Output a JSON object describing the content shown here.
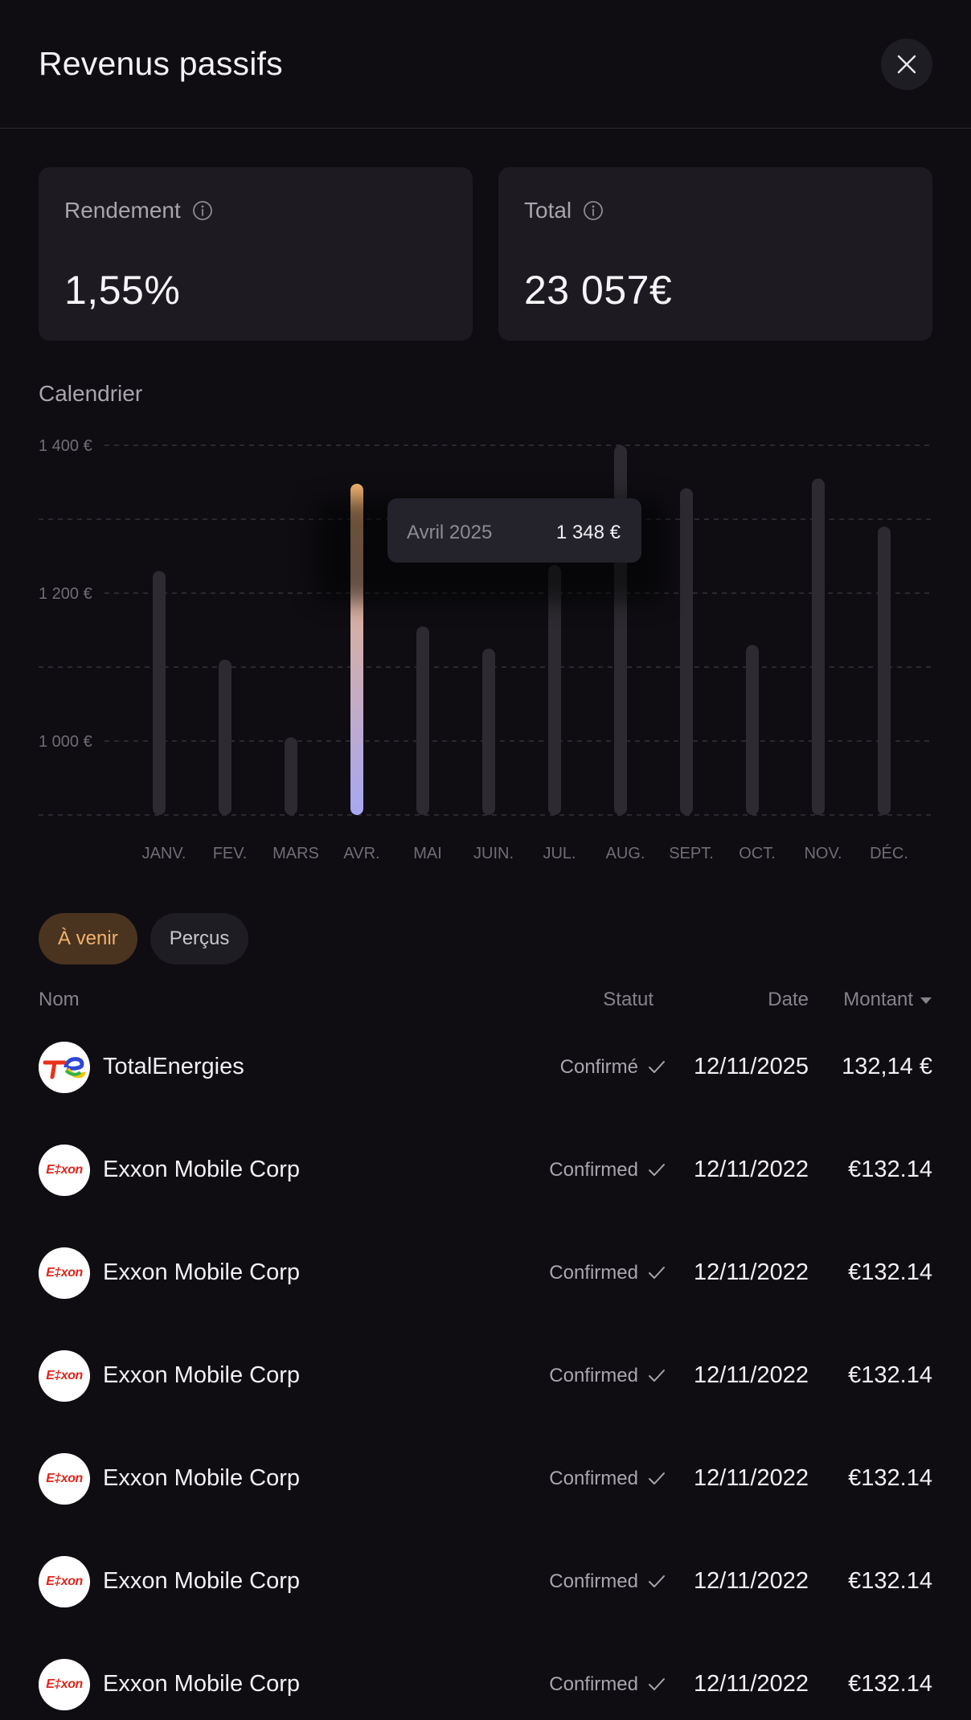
{
  "header": {
    "title": "Revenus passifs",
    "close_icon": "close-icon"
  },
  "stats": [
    {
      "label": "Rendement",
      "value": "1,55%",
      "icon": "info-icon"
    },
    {
      "label": "Total",
      "value": "23 057€",
      "icon": "info-icon"
    }
  ],
  "calendar": {
    "title": "Calendrier"
  },
  "chart_data": {
    "type": "bar",
    "categories": [
      "JANV.",
      "FEV.",
      "MARS",
      "AVR.",
      "MAI",
      "JUIN.",
      "JUL.",
      "AUG.",
      "SEPT.",
      "OCT.",
      "NOV.",
      "DÉC."
    ],
    "values": [
      1230,
      1110,
      1005,
      1348,
      1155,
      1125,
      1238,
      1400,
      1342,
      1130,
      1355,
      1290
    ],
    "y_ticks": [
      "1 400 €",
      "1 200 €",
      "1 000 €"
    ],
    "y_tick_values": [
      1400,
      1200,
      1000
    ],
    "ylim": [
      900,
      1400
    ],
    "grid": true,
    "highlight_index": 3,
    "highlight_colors": [
      "#f6b56e",
      "#a8a7f2"
    ],
    "bar_color": "#2d2b31",
    "tooltip": {
      "label": "Avril 2025",
      "value": "1 348 €"
    }
  },
  "tabs": [
    {
      "label": "À venir",
      "active": true
    },
    {
      "label": "Perçus",
      "active": false
    }
  ],
  "table": {
    "headers": {
      "name": "Nom",
      "status": "Statut",
      "date": "Date",
      "amount": "Montant"
    },
    "rows": [
      {
        "logo": "totalenergies",
        "name": "TotalEnergies",
        "status": "Confirmé",
        "date": "12/11/2025",
        "amount": "132,14 €"
      },
      {
        "logo": "exxon",
        "logo_text": "E‡xon",
        "name": "Exxon Mobile Corp",
        "status": "Confirmed",
        "date": "12/11/2022",
        "amount": "€132.14"
      },
      {
        "logo": "exxon",
        "logo_text": "E‡xon",
        "name": "Exxon Mobile Corp",
        "status": "Confirmed",
        "date": "12/11/2022",
        "amount": "€132.14"
      },
      {
        "logo": "exxon",
        "logo_text": "E‡xon",
        "name": "Exxon Mobile Corp",
        "status": "Confirmed",
        "date": "12/11/2022",
        "amount": "€132.14"
      },
      {
        "logo": "exxon",
        "logo_text": "E‡xon",
        "name": "Exxon Mobile Corp",
        "status": "Confirmed",
        "date": "12/11/2022",
        "amount": "€132.14"
      },
      {
        "logo": "exxon",
        "logo_text": "E‡xon",
        "name": "Exxon Mobile Corp",
        "status": "Confirmed",
        "date": "12/11/2022",
        "amount": "€132.14"
      },
      {
        "logo": "exxon",
        "logo_text": "E‡xon",
        "name": "Exxon Mobile Corp",
        "status": "Confirmed",
        "date": "12/11/2022",
        "amount": "€132.14"
      }
    ]
  },
  "colors": {
    "background": "#0f0d12",
    "card": "#1d1b21",
    "accent": "#f2b26c",
    "tab_active_bg": "#4a3420"
  }
}
